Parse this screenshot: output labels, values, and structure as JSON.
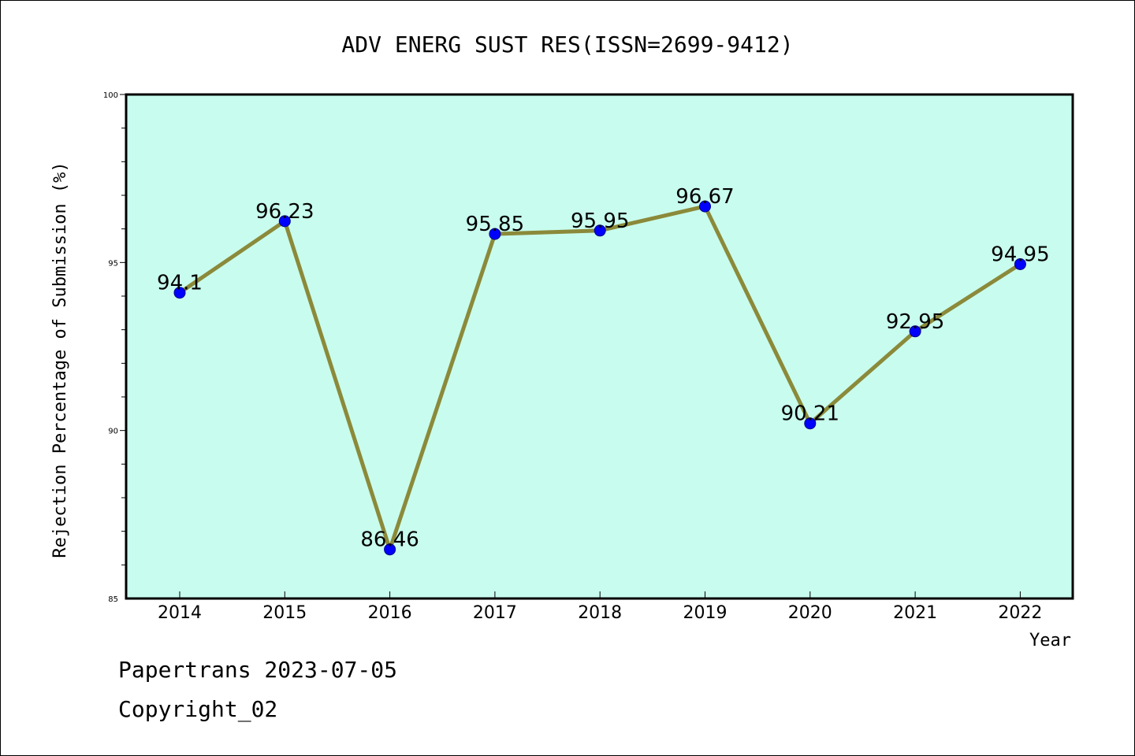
{
  "chart_data": {
    "type": "line",
    "title": "ADV ENERG SUST RES(ISSN=2699-9412)",
    "xlabel": "Year",
    "ylabel": "Rejection Percentage of Submission (%)",
    "categories": [
      "2014",
      "2015",
      "2016",
      "2017",
      "2018",
      "2019",
      "2020",
      "2021",
      "2022"
    ],
    "series": [
      {
        "values": [
          94.1,
          96.23,
          86.46,
          95.85,
          95.95,
          96.67,
          90.21,
          92.95,
          94.95
        ],
        "data_labels": [
          "94.1",
          "96.23",
          "86.46",
          "95.85",
          "95.95",
          "96.67",
          "90.21",
          "92.95",
          "94.95"
        ]
      }
    ],
    "ylim": [
      85,
      100
    ],
    "yticks": [
      "85",
      "90",
      "95",
      "100"
    ],
    "grid": false,
    "colors": {
      "line": "#8b8a3a",
      "marker": "#0000ff",
      "plot_background": "#c8fcee"
    }
  },
  "footer": {
    "line1": "Papertrans 2023-07-05",
    "line2": "Copyright_02"
  }
}
